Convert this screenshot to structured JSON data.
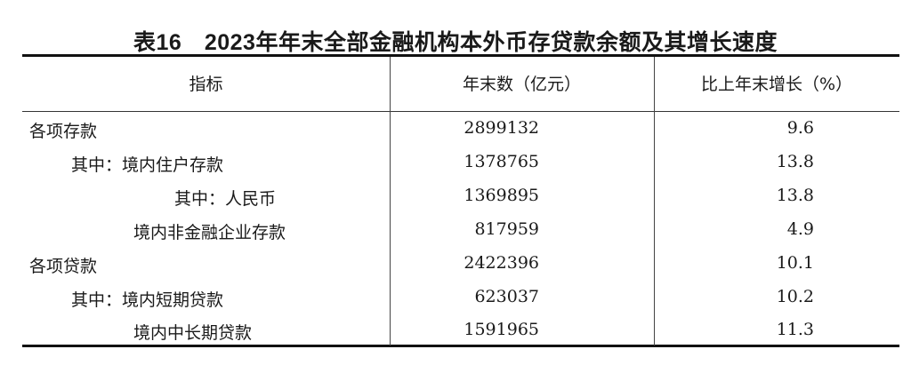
{
  "title": "表16　2023年年末全部金融机构本外币存贷款余额及其增长速度",
  "table": {
    "headers": [
      "指标",
      "年末数（亿元）",
      "比上年末增长（%）"
    ],
    "rows": [
      {
        "label": "各项存款",
        "value": "2899132",
        "growth": "9.6"
      },
      {
        "label": "其中：境内住户存款",
        "value": "1378765",
        "growth": "13.8"
      },
      {
        "label": "其中：人民币",
        "value": "1369895",
        "growth": "13.8"
      },
      {
        "label": "境内非金融企业存款",
        "value": "817959",
        "growth": "4.9"
      },
      {
        "label": "各项贷款",
        "value": "2422396",
        "growth": "10.1"
      },
      {
        "label": "其中：境内短期贷款",
        "value": "623037",
        "growth": "10.2"
      },
      {
        "label": "境内中长期贷款",
        "value": "1591965",
        "growth": "11.3"
      }
    ]
  }
}
